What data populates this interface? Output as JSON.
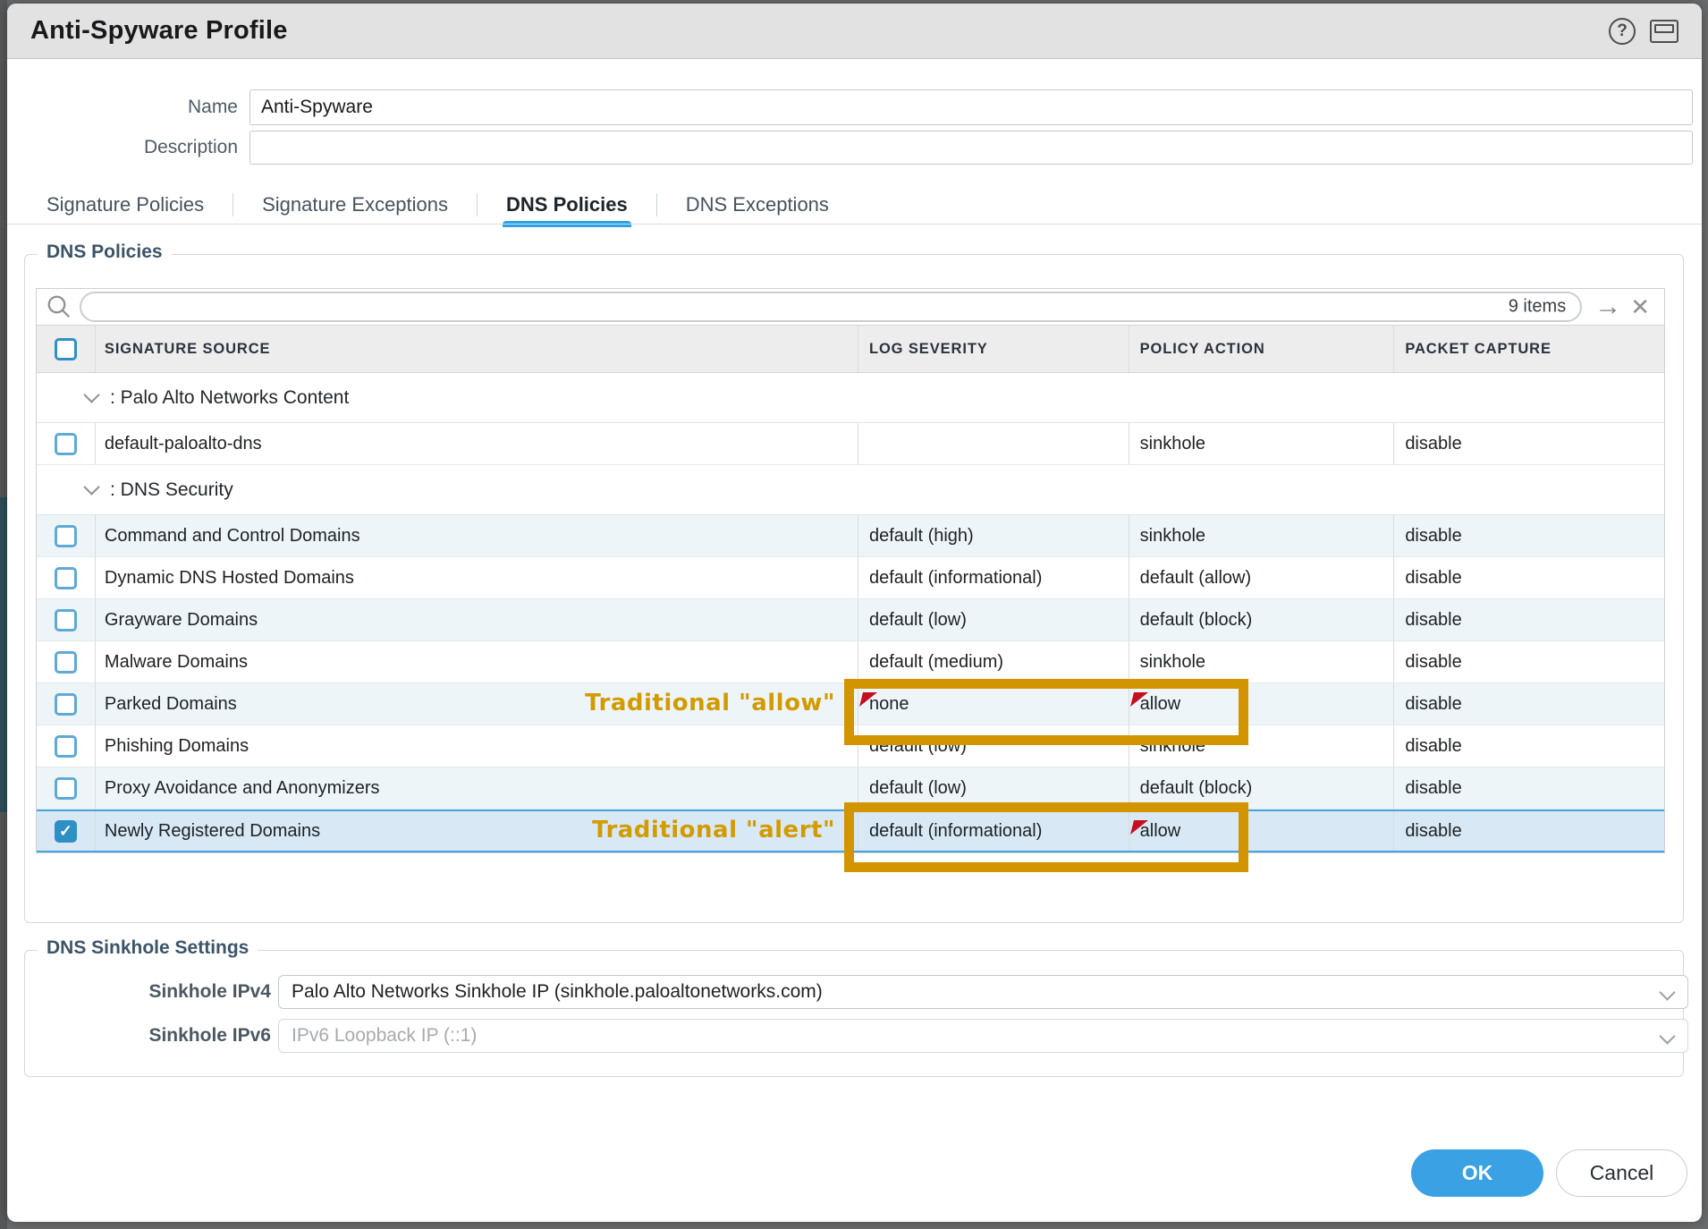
{
  "dialog": {
    "title": "Anti-Spyware Profile"
  },
  "icons": {
    "help": "?",
    "window": "window-restore",
    "search": "magnifier",
    "go_arrow": "→",
    "clear": "✕",
    "check": "✓",
    "chevron_down": "v"
  },
  "form": {
    "name_label": "Name",
    "name_value": "Anti-Spyware",
    "description_label": "Description",
    "description_value": ""
  },
  "tabs": [
    {
      "label": "Signature Policies",
      "active": false
    },
    {
      "label": "Signature Exceptions",
      "active": false
    },
    {
      "label": "DNS Policies",
      "active": true
    },
    {
      "label": "DNS Exceptions",
      "active": false
    }
  ],
  "dns_policies": {
    "legend": "DNS Policies",
    "search": {
      "value": "",
      "items_count": "9 items"
    },
    "table": {
      "columns": [
        "SIGNATURE SOURCE",
        "LOG SEVERITY",
        "POLICY ACTION",
        "PACKET CAPTURE"
      ],
      "rows": [
        {
          "type": "group",
          "label": ": Palo Alto Networks Content"
        },
        {
          "type": "data",
          "name": "default-paloalto-dns",
          "severity": "",
          "action": "sinkhole",
          "capture": "disable",
          "shade": false,
          "checked": false,
          "selected": false,
          "severity_modified": false,
          "action_modified": false
        },
        {
          "type": "group",
          "label": ": DNS Security"
        },
        {
          "type": "data",
          "name": "Command and Control Domains",
          "severity": "default (high)",
          "action": "sinkhole",
          "capture": "disable",
          "shade": true,
          "checked": false,
          "selected": false,
          "severity_modified": false,
          "action_modified": false
        },
        {
          "type": "data",
          "name": "Dynamic DNS Hosted Domains",
          "severity": "default (informational)",
          "action": "default (allow)",
          "capture": "disable",
          "shade": false,
          "checked": false,
          "selected": false,
          "severity_modified": false,
          "action_modified": false
        },
        {
          "type": "data",
          "name": "Grayware Domains",
          "severity": "default (low)",
          "action": "default (block)",
          "capture": "disable",
          "shade": true,
          "checked": false,
          "selected": false,
          "severity_modified": false,
          "action_modified": false
        },
        {
          "type": "data",
          "name": "Malware Domains",
          "severity": "default (medium)",
          "action": "sinkhole",
          "capture": "disable",
          "shade": false,
          "checked": false,
          "selected": false,
          "severity_modified": false,
          "action_modified": false
        },
        {
          "type": "data",
          "name": "Parked Domains",
          "severity": "none",
          "action": "allow",
          "capture": "disable",
          "shade": true,
          "checked": false,
          "selected": false,
          "severity_modified": true,
          "action_modified": true
        },
        {
          "type": "data",
          "name": "Phishing Domains",
          "severity": "default (low)",
          "action": "sinkhole",
          "capture": "disable",
          "shade": false,
          "checked": false,
          "selected": false,
          "severity_modified": false,
          "action_modified": false
        },
        {
          "type": "data",
          "name": "Proxy Avoidance and Anonymizers",
          "severity": "default (low)",
          "action": "default (block)",
          "capture": "disable",
          "shade": true,
          "checked": false,
          "selected": false,
          "severity_modified": false,
          "action_modified": false
        },
        {
          "type": "data",
          "name": "Newly Registered Domains",
          "severity": "default (informational)",
          "action": "allow",
          "capture": "disable",
          "shade": true,
          "checked": true,
          "selected": true,
          "severity_modified": false,
          "action_modified": true
        }
      ]
    }
  },
  "annotations": [
    {
      "label": "Traditional \"allow\""
    },
    {
      "label": "Traditional \"alert\""
    }
  ],
  "sinkhole": {
    "legend": "DNS Sinkhole Settings",
    "ipv4_label": "Sinkhole IPv4",
    "ipv4_value": "Palo Alto Networks Sinkhole IP (sinkhole.paloaltonetworks.com)",
    "ipv6_label": "Sinkhole IPv6",
    "ipv6_value": "IPv6 Loopback IP (::1)"
  },
  "footer": {
    "ok": "OK",
    "cancel": "Cancel"
  },
  "colors": {
    "accent_blue": "#2ba2e6",
    "selected_row_border": "#47a4db",
    "checkbox_blue": "#2e90c5",
    "annotation_gold": "#d29500",
    "modified_marker_red": "#c40f1f",
    "ok_button": "#3aa1e4"
  }
}
